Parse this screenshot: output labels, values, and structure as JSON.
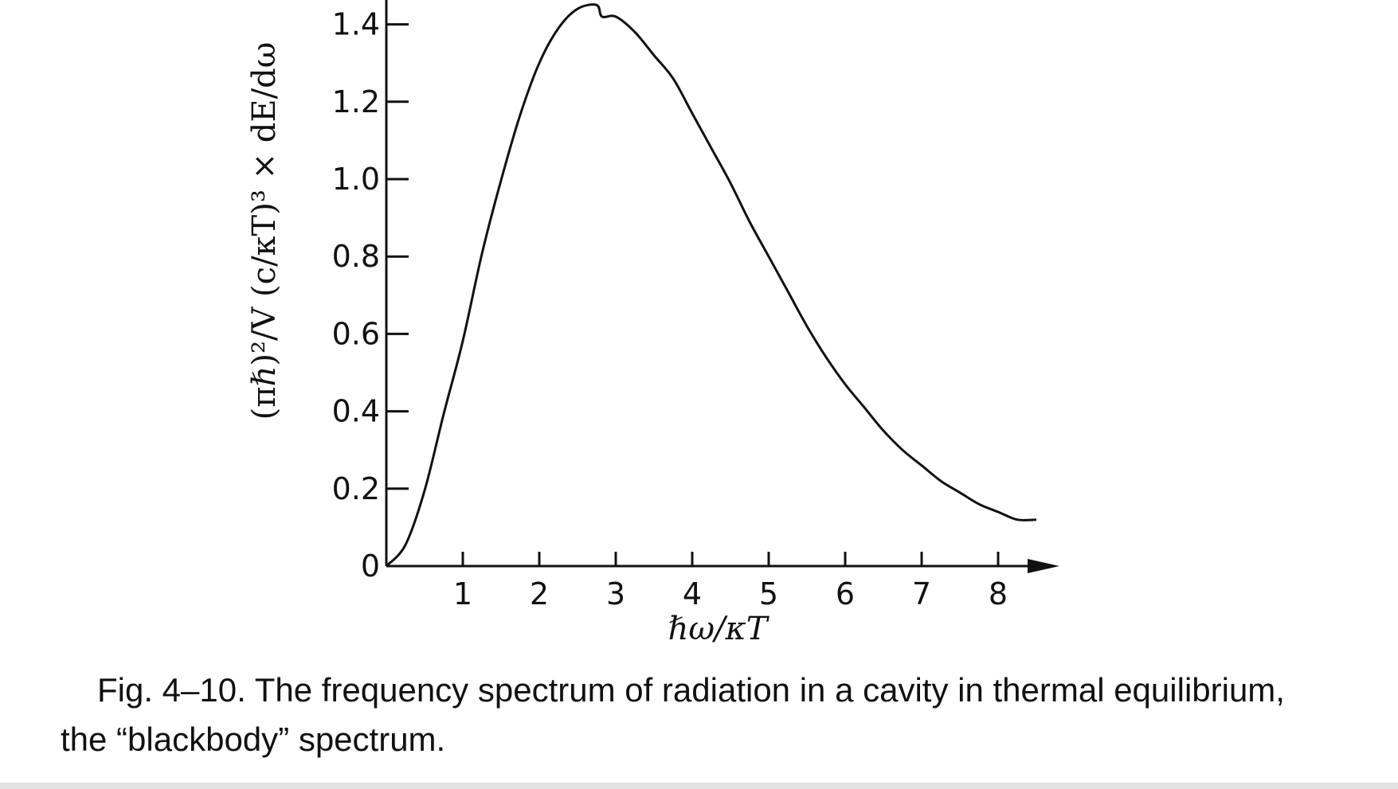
{
  "figure": {
    "caption": "Fig. 4–10.   The frequency spectrum of radiation in a cavity in thermal equilibrium, the “blackbody” spectrum."
  },
  "chart_data": {
    "type": "line",
    "title": "",
    "xlabel": "ℏω/κT",
    "ylabel": "(πℏ)²/V (c/κT)³ × dE/dω",
    "xlim": [
      0,
      8.6
    ],
    "ylim": [
      0,
      1.4
    ],
    "x_ticks": [
      1,
      2,
      3,
      4,
      5,
      6,
      7,
      8
    ],
    "x_tick_labels": [
      "1",
      "2",
      "3",
      "4",
      "5",
      "6",
      "7",
      "8"
    ],
    "y_ticks": [
      0,
      0.2,
      0.4,
      0.6,
      0.8,
      1.0,
      1.2,
      1.4
    ],
    "y_tick_labels": [
      "0",
      "0.2",
      "0.4",
      "0.6",
      "0.8",
      "1.0",
      "1.2",
      "1.4"
    ],
    "grid": false,
    "x_axis_arrow": true,
    "series": [
      {
        "color": "#111111",
        "x": [
          0,
          0.25,
          0.5,
          0.75,
          1.0,
          1.25,
          1.5,
          1.75,
          2.0,
          2.25,
          2.5,
          2.75,
          2.82,
          3.0,
          3.25,
          3.5,
          3.75,
          4.0,
          4.25,
          4.5,
          4.75,
          5.0,
          5.25,
          5.5,
          5.75,
          6.0,
          6.25,
          6.5,
          6.75,
          7.0,
          7.25,
          7.5,
          7.75,
          8.0,
          8.25,
          8.5
        ],
        "y": [
          0,
          0.055,
          0.195,
          0.393,
          0.582,
          0.807,
          0.997,
          1.166,
          1.3,
          1.39,
          1.44,
          1.45,
          1.42,
          1.42,
          1.38,
          1.32,
          1.26,
          1.17,
          1.08,
          0.99,
          0.89,
          0.8,
          0.71,
          0.62,
          0.54,
          0.47,
          0.41,
          0.35,
          0.3,
          0.26,
          0.22,
          0.19,
          0.16,
          0.14,
          0.12,
          0.12
        ]
      }
    ]
  }
}
